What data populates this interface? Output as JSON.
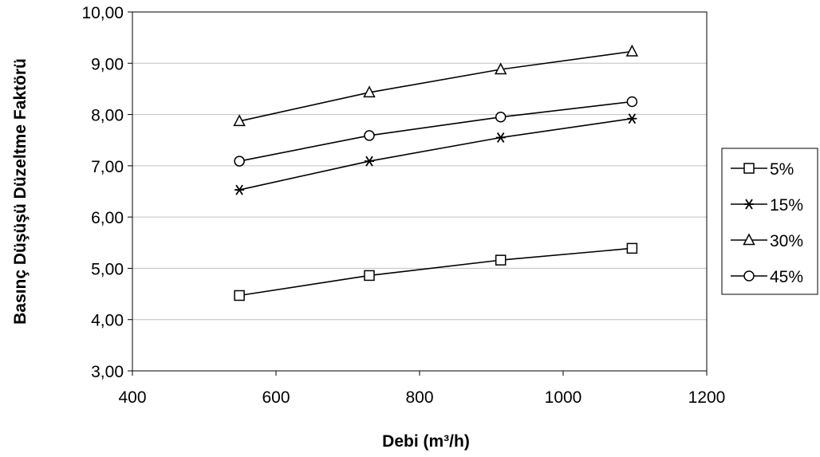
{
  "chart_data": {
    "type": "line",
    "xlabel": "Debi (m³/h)",
    "ylabel": "Basınç Düşüşü Düzeltme Faktörü",
    "xlim": [
      400,
      1200
    ],
    "ylim": [
      3,
      10
    ],
    "x_ticks": [
      "400",
      "600",
      "800",
      "1000",
      "1200"
    ],
    "y_ticks": [
      "3,00",
      "4,00",
      "5,00",
      "6,00",
      "7,00",
      "8,00",
      "9,00",
      "10,00"
    ],
    "grid": "horizontal",
    "legend_position": "right",
    "x": [
      549,
      730,
      913,
      1096
    ],
    "series": [
      {
        "name": "5%",
        "marker": "square",
        "values": [
          4.47,
          4.86,
          5.16,
          5.39
        ]
      },
      {
        "name": "15%",
        "marker": "asterisk",
        "values": [
          6.53,
          7.09,
          7.55,
          7.92
        ]
      },
      {
        "name": "30%",
        "marker": "triangle",
        "values": [
          7.87,
          8.43,
          8.88,
          9.23
        ]
      },
      {
        "name": "45%",
        "marker": "circle",
        "values": [
          7.09,
          7.59,
          7.95,
          8.25
        ]
      }
    ],
    "colors": {
      "line": "#000000",
      "grid": "#c0c0c0",
      "background": "#ffffff"
    }
  }
}
